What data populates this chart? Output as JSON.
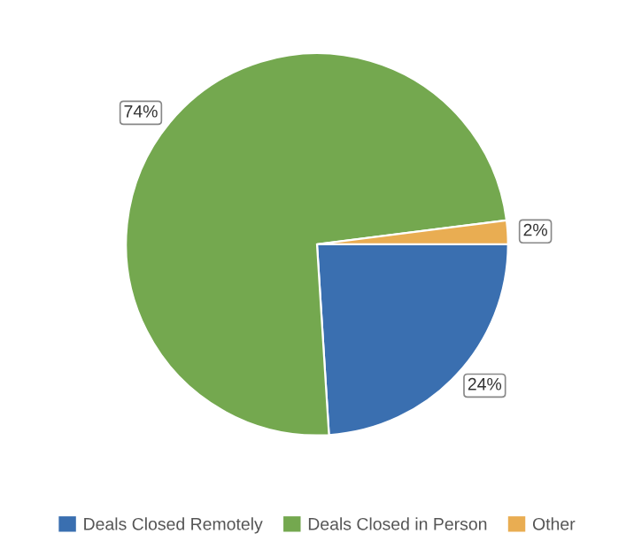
{
  "chart_data": {
    "type": "pie",
    "categories": [
      "Deals Closed Remotely",
      "Deals Closed in Person",
      "Other"
    ],
    "values": [
      24,
      74,
      2
    ],
    "colors": [
      "#3a6fb0",
      "#74a84f",
      "#e9ad52"
    ],
    "value_labels": [
      "24%",
      "74%",
      "2%"
    ],
    "legend": "bottom"
  }
}
